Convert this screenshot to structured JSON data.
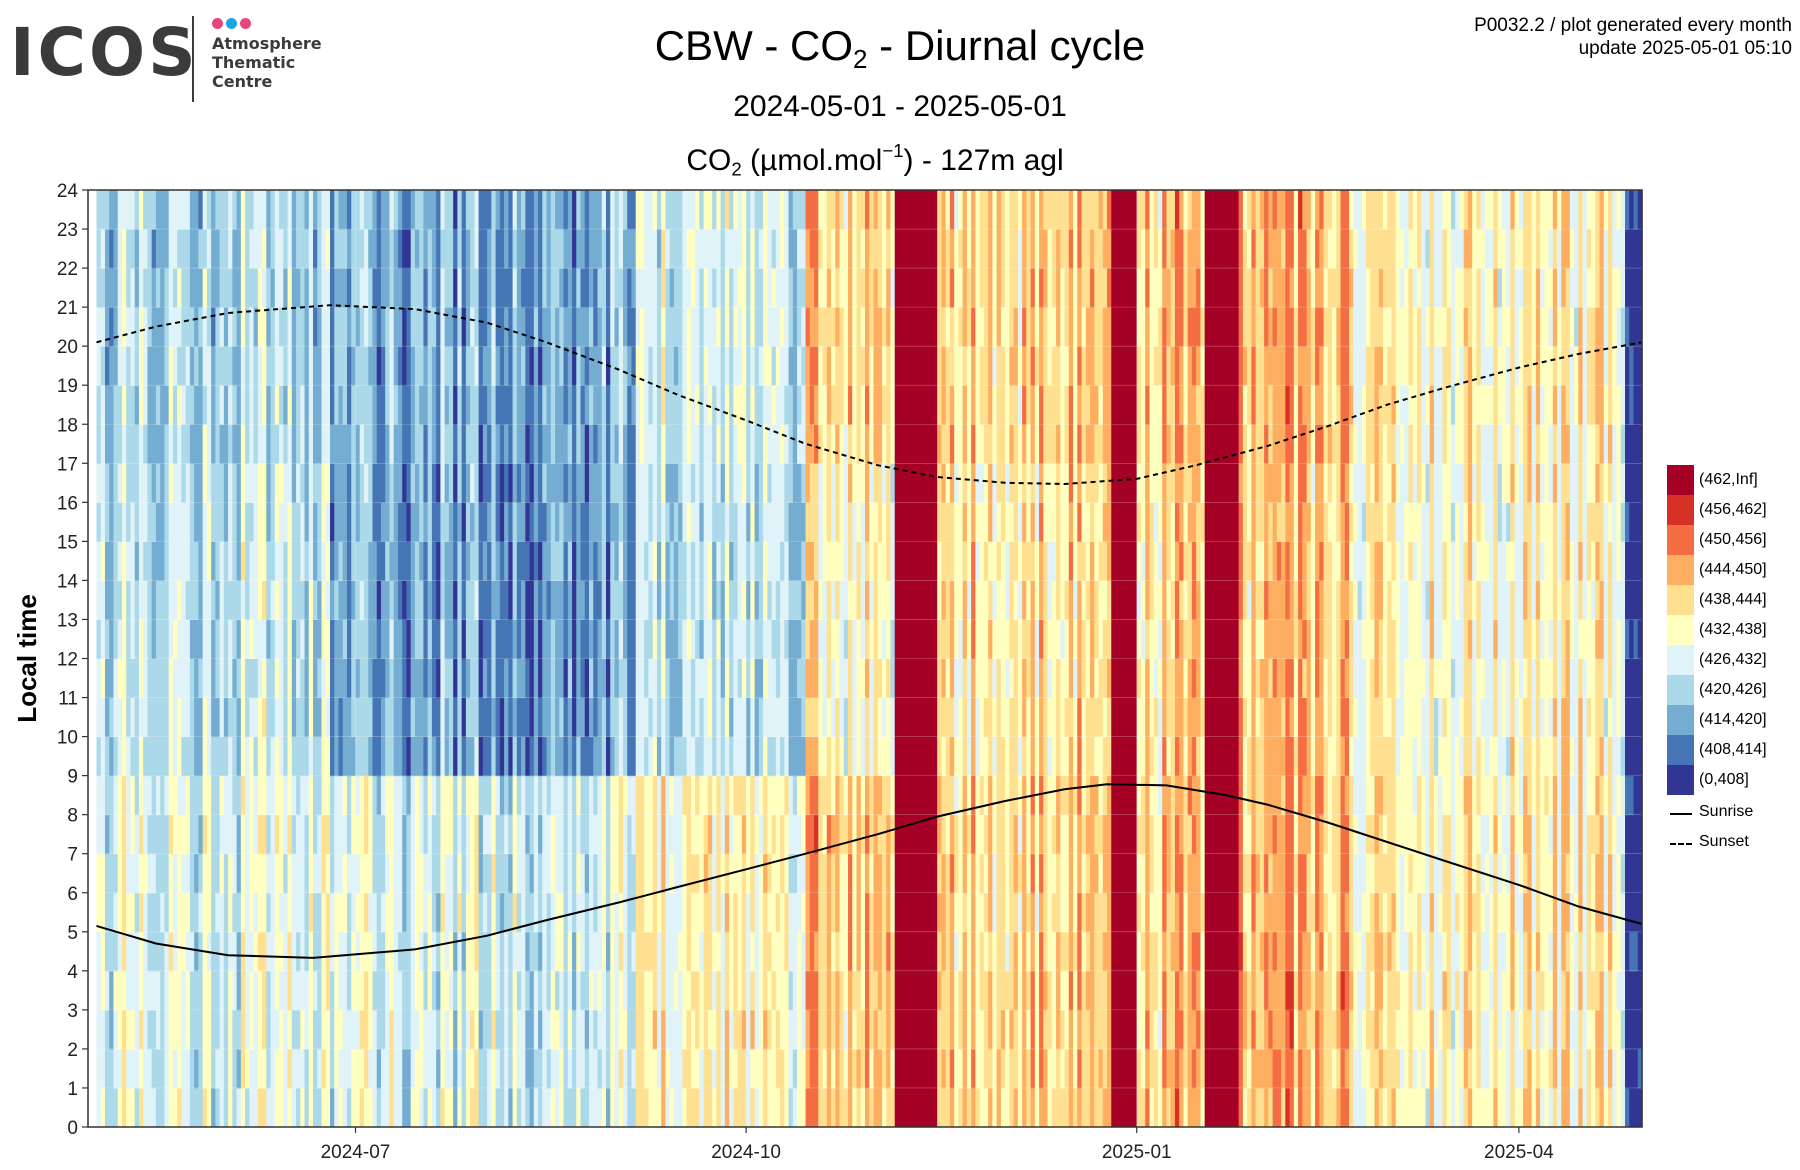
{
  "logo": {
    "word": "ICOS",
    "lines": [
      "Atmosphere",
      "Thematic",
      "Centre"
    ],
    "dot_colors": [
      "#e8457a",
      "#19a6e8",
      "#e8457a"
    ]
  },
  "title": {
    "prefix": "CBW - CO",
    "sub": "2",
    "suffix": " - Diurnal cycle"
  },
  "period": "2024-05-01 - 2025-05-01",
  "variable": {
    "prefix": "CO",
    "sub": "2",
    "mid": " (µmol.mol",
    "sup": "−1",
    "suffix": ") - 127m agl"
  },
  "note": {
    "line1": "P0032.2 / plot generated every month",
    "line2": "update  2025-05-01 05:10"
  },
  "chart_data": {
    "type": "heatmap",
    "ylabel": "Local time",
    "xlabel": "",
    "x_range": [
      "2024-04-29",
      "2025-04-30"
    ],
    "ylim": [
      0,
      24
    ],
    "x_ticks": [
      {
        "date": "2024-07-01",
        "label": "2024-07"
      },
      {
        "date": "2024-10-01",
        "label": "2024-10"
      },
      {
        "date": "2025-01-01",
        "label": "2025-01"
      },
      {
        "date": "2025-04-01",
        "label": "2025-04"
      }
    ],
    "y_ticks": [
      "0",
      "1",
      "2",
      "3",
      "4",
      "5",
      "6",
      "7",
      "8",
      "9",
      "10",
      "11",
      "12",
      "13",
      "14",
      "15",
      "16",
      "17",
      "18",
      "19",
      "20",
      "21",
      "22",
      "23",
      "24"
    ],
    "grid": true,
    "legend_position": "right",
    "color_bins": [
      {
        "label": "(462,Inf]",
        "color": "#a50026"
      },
      {
        "label": "(456,462]",
        "color": "#d73027"
      },
      {
        "label": "(450,456]",
        "color": "#f46d43"
      },
      {
        "label": "(444,450]",
        "color": "#fdae61"
      },
      {
        "label": "(438,444]",
        "color": "#fee090"
      },
      {
        "label": "(432,438]",
        "color": "#ffffbf"
      },
      {
        "label": "(426,432]",
        "color": "#e0f3f8"
      },
      {
        "label": "(420,426]",
        "color": "#abd9e9"
      },
      {
        "label": "(414,420]",
        "color": "#74add1"
      },
      {
        "label": "(408,414]",
        "color": "#4575b4"
      },
      {
        "label": "(0,408]",
        "color": "#313695"
      }
    ],
    "regime": [
      {
        "from": "2024-05-01",
        "to": "2024-06-25",
        "night": 431,
        "midday": 427,
        "evening": 425
      },
      {
        "from": "2024-06-25",
        "to": "2024-09-05",
        "night": 429,
        "midday": 416,
        "evening": 418
      },
      {
        "from": "2024-09-05",
        "to": "2024-10-15",
        "night": 436,
        "midday": 425,
        "evening": 428
      },
      {
        "from": "2024-10-15",
        "to": "2024-11-15",
        "night": 444,
        "midday": 436,
        "evening": 442
      },
      {
        "from": "2024-11-15",
        "to": "2025-01-10",
        "night": 443,
        "midday": 440,
        "evening": 443
      },
      {
        "from": "2025-01-10",
        "to": "2025-02-20",
        "night": 446,
        "midday": 444,
        "evening": 446
      },
      {
        "from": "2025-02-20",
        "to": "2025-04-30",
        "night": 437,
        "midday": 435,
        "evening": 436
      }
    ],
    "high_episodes": [
      {
        "from": "2024-11-05",
        "to": "2024-11-14",
        "value": 465
      },
      {
        "from": "2024-12-26",
        "to": "2024-12-31",
        "value": 466
      },
      {
        "from": "2025-01-17",
        "to": "2025-01-24",
        "value": 468
      }
    ],
    "low_episodes": [
      {
        "from": "2025-04-26",
        "to": "2025-04-30",
        "value": 406
      }
    ],
    "series": [
      {
        "name": "Sunrise",
        "style": "solid",
        "points": [
          [
            "2024-05-01",
            5.15
          ],
          [
            "2024-05-15",
            4.7
          ],
          [
            "2024-06-01",
            4.4
          ],
          [
            "2024-06-21",
            4.33
          ],
          [
            "2024-07-15",
            4.55
          ],
          [
            "2024-08-01",
            4.9
          ],
          [
            "2024-08-15",
            5.3
          ],
          [
            "2024-09-01",
            5.75
          ],
          [
            "2024-09-15",
            6.15
          ],
          [
            "2024-10-01",
            6.6
          ],
          [
            "2024-10-15",
            7.0
          ],
          [
            "2024-11-01",
            7.5
          ],
          [
            "2024-11-15",
            7.95
          ],
          [
            "2024-12-01",
            8.35
          ],
          [
            "2024-12-15",
            8.65
          ],
          [
            "2024-12-25",
            8.78
          ],
          [
            "2025-01-08",
            8.75
          ],
          [
            "2025-01-22",
            8.5
          ],
          [
            "2025-02-01",
            8.25
          ],
          [
            "2025-02-15",
            7.8
          ],
          [
            "2025-03-01",
            7.3
          ],
          [
            "2025-03-15",
            6.8
          ],
          [
            "2025-04-01",
            6.2
          ],
          [
            "2025-04-15",
            5.65
          ],
          [
            "2025-04-30",
            5.2
          ]
        ]
      },
      {
        "name": "Sunset",
        "style": "dashed",
        "points": [
          [
            "2024-05-01",
            20.1
          ],
          [
            "2024-05-15",
            20.5
          ],
          [
            "2024-06-01",
            20.85
          ],
          [
            "2024-06-25",
            21.05
          ],
          [
            "2024-07-15",
            20.95
          ],
          [
            "2024-08-01",
            20.6
          ],
          [
            "2024-08-15",
            20.1
          ],
          [
            "2024-09-01",
            19.4
          ],
          [
            "2024-09-15",
            18.75
          ],
          [
            "2024-10-01",
            18.1
          ],
          [
            "2024-10-15",
            17.5
          ],
          [
            "2024-11-01",
            16.95
          ],
          [
            "2024-11-15",
            16.65
          ],
          [
            "2024-12-01",
            16.5
          ],
          [
            "2024-12-15",
            16.47
          ],
          [
            "2025-01-01",
            16.6
          ],
          [
            "2025-01-15",
            16.95
          ],
          [
            "2025-02-01",
            17.45
          ],
          [
            "2025-02-15",
            17.95
          ],
          [
            "2025-03-01",
            18.5
          ],
          [
            "2025-03-15",
            18.95
          ],
          [
            "2025-04-01",
            19.45
          ],
          [
            "2025-04-15",
            19.8
          ],
          [
            "2025-04-30",
            20.1
          ]
        ]
      }
    ]
  }
}
